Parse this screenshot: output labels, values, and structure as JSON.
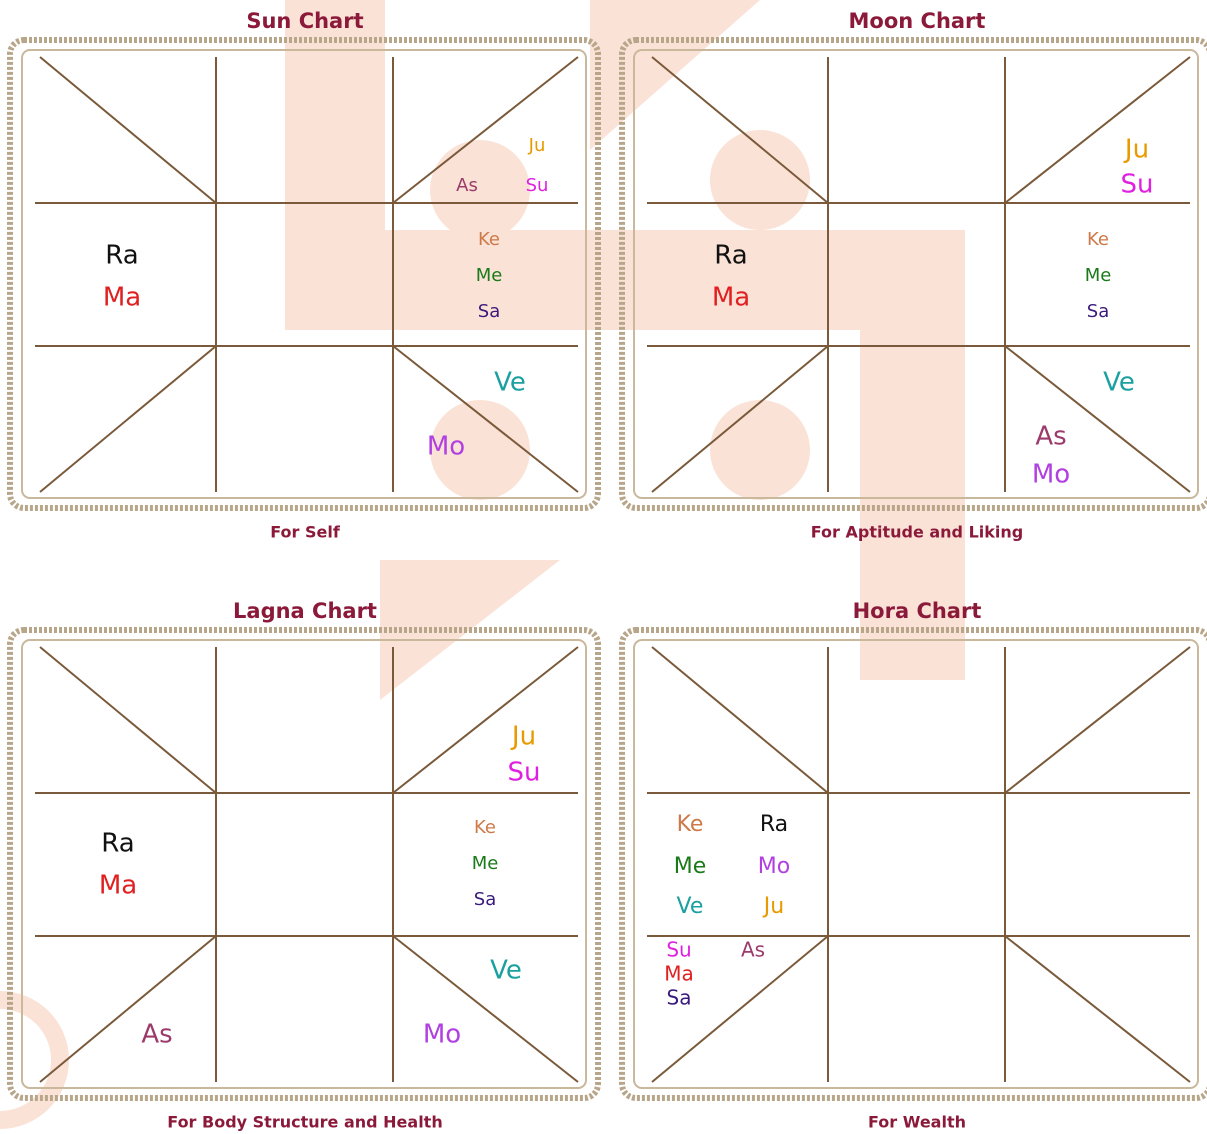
{
  "charts": [
    {
      "title": "Sun Chart",
      "subtitle": "For Self",
      "planets": [
        {
          "text": "Ju",
          "color": "#e89a00"
        },
        {
          "text": "As",
          "color": "#9b3a6b"
        },
        {
          "text": "Su",
          "color": "#e020e0"
        },
        {
          "text": "Ke",
          "color": "#cd7a4a"
        },
        {
          "text": "Me",
          "color": "#1a7a1a"
        },
        {
          "text": "Sa",
          "color": "#3a1a7a"
        },
        {
          "text": "Ra",
          "color": "#111111"
        },
        {
          "text": "Ma",
          "color": "#e02020"
        },
        {
          "text": "Ve",
          "color": "#1aa0a0"
        },
        {
          "text": "Mo",
          "color": "#b040e0"
        }
      ]
    },
    {
      "title": "Moon Chart",
      "subtitle": "For Aptitude and Liking",
      "planets": [
        {
          "text": "Ju",
          "color": "#e89a00"
        },
        {
          "text": "Su",
          "color": "#e020e0"
        },
        {
          "text": "Ra",
          "color": "#111111"
        },
        {
          "text": "Ma",
          "color": "#e02020"
        },
        {
          "text": "Ke",
          "color": "#cd7a4a"
        },
        {
          "text": "Me",
          "color": "#1a7a1a"
        },
        {
          "text": "Sa",
          "color": "#3a1a7a"
        },
        {
          "text": "Ve",
          "color": "#1aa0a0"
        },
        {
          "text": "As",
          "color": "#9b3a6b"
        },
        {
          "text": "Mo",
          "color": "#b040e0"
        }
      ]
    },
    {
      "title": "Lagna Chart",
      "subtitle": "For Body Structure and Health",
      "planets": [
        {
          "text": "Ju",
          "color": "#e89a00"
        },
        {
          "text": "Su",
          "color": "#e020e0"
        },
        {
          "text": "Ke",
          "color": "#cd7a4a"
        },
        {
          "text": "Me",
          "color": "#1a7a1a"
        },
        {
          "text": "Sa",
          "color": "#3a1a7a"
        },
        {
          "text": "Ra",
          "color": "#111111"
        },
        {
          "text": "Ma",
          "color": "#e02020"
        },
        {
          "text": "Ve",
          "color": "#1aa0a0"
        },
        {
          "text": "As",
          "color": "#9b3a6b"
        },
        {
          "text": "Mo",
          "color": "#b040e0"
        }
      ]
    },
    {
      "title": "Hora Chart",
      "subtitle": "For Wealth",
      "planets": [
        {
          "text": "Ke",
          "color": "#cd7a4a"
        },
        {
          "text": "Ra",
          "color": "#111111"
        },
        {
          "text": "Me",
          "color": "#1a7a1a"
        },
        {
          "text": "Mo",
          "color": "#b040e0"
        },
        {
          "text": "Ve",
          "color": "#1aa0a0"
        },
        {
          "text": "Ju",
          "color": "#e89a00"
        },
        {
          "text": "Su",
          "color": "#e020e0"
        },
        {
          "text": "As",
          "color": "#9b3a6b"
        },
        {
          "text": "Ma",
          "color": "#e02020"
        },
        {
          "text": "Sa",
          "color": "#3a1a7a"
        }
      ]
    }
  ]
}
